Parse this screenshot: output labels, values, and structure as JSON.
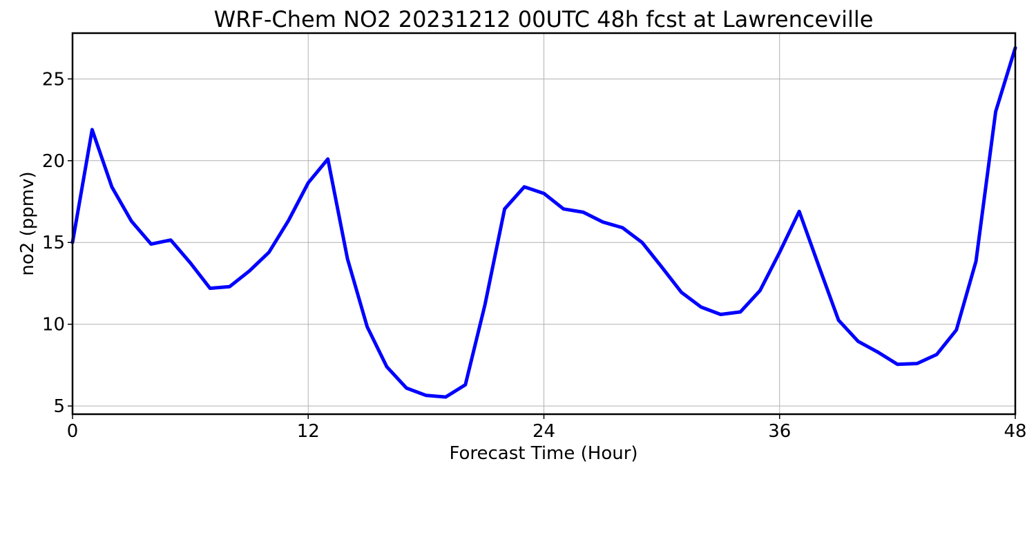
{
  "chart_data": {
    "type": "line",
    "title": "WRF-Chem NO2  20231212 00UTC 48h fcst at Lawrenceville",
    "xlabel": "Forecast Time (Hour)",
    "ylabel": "no2  (ppmv)",
    "xlim": [
      0,
      48
    ],
    "ylim": [
      4.5,
      27.8
    ],
    "xticks": [
      0,
      12,
      24,
      36,
      48
    ],
    "yticks": [
      5,
      10,
      15,
      20,
      25
    ],
    "grid": true,
    "legend": "none",
    "series": [
      {
        "color": "#0000ff",
        "x": [
          0,
          1,
          2,
          3,
          4,
          5,
          6,
          7,
          8,
          9,
          10,
          11,
          12,
          13,
          14,
          15,
          16,
          17,
          18,
          19,
          20,
          21,
          22,
          23,
          24,
          25,
          26,
          27,
          28,
          29,
          30,
          31,
          32,
          33,
          34,
          35,
          36,
          37,
          38,
          39,
          40,
          41,
          42,
          43,
          44,
          45,
          46,
          47,
          48
        ],
        "values": [
          15.0,
          21.9,
          18.4,
          16.3,
          14.9,
          15.15,
          13.75,
          12.2,
          12.3,
          13.25,
          14.4,
          16.35,
          18.65,
          20.1,
          14.0,
          9.85,
          7.4,
          6.1,
          5.65,
          5.55,
          6.3,
          11.2,
          17.05,
          18.4,
          18.0,
          17.05,
          16.85,
          16.25,
          15.9,
          15.0,
          13.5,
          11.95,
          11.05,
          10.6,
          10.75,
          12.05,
          14.4,
          16.9,
          13.55,
          10.25,
          8.95,
          8.3,
          7.55,
          7.6,
          8.15,
          9.65,
          13.85,
          23.0,
          26.9
        ]
      }
    ]
  }
}
